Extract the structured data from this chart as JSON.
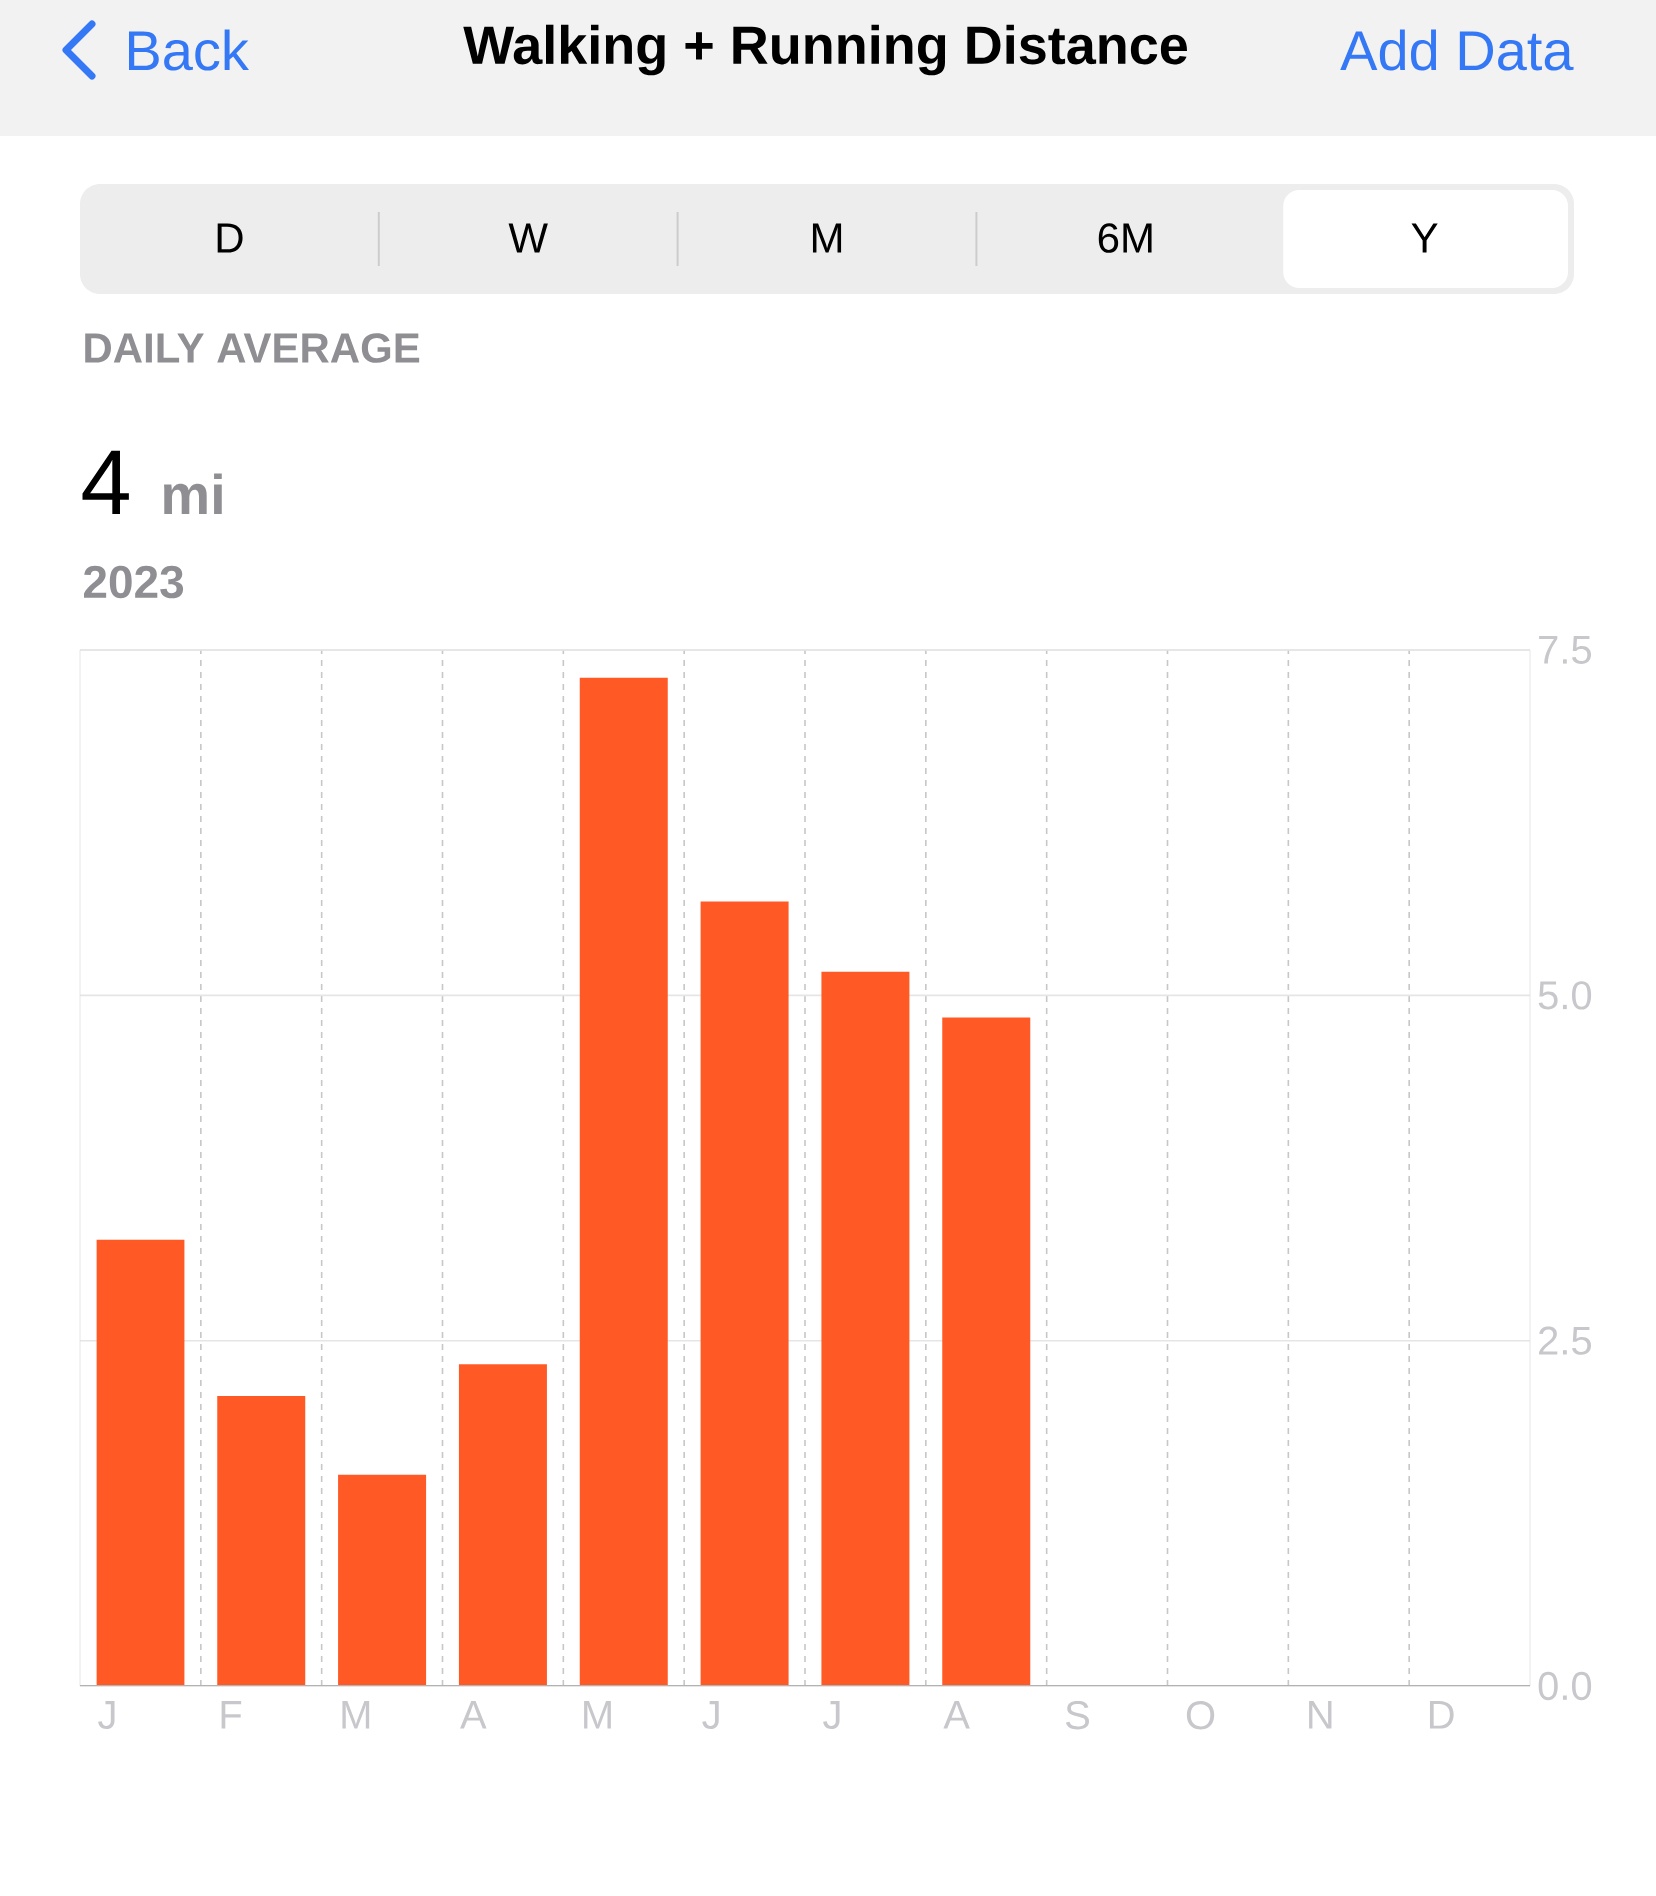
{
  "chart_data": {
    "type": "bar",
    "title": "Walking + Running Distance",
    "annotations": [
      "Back",
      "Add Data",
      "D",
      "W",
      "M",
      "6M",
      "Y",
      "DAILY AVERAGE",
      "4",
      "mi",
      "2023"
    ],
    "categories": [
      "J",
      "F",
      "M",
      "A",
      "M",
      "J",
      "J",
      "A",
      "S",
      "O",
      "N",
      "D"
    ],
    "values": [
      3.23,
      2.1,
      1.53,
      2.33,
      7.3,
      5.68,
      5.17,
      4.84,
      null,
      null,
      null,
      null
    ],
    "color": "#ff5a26",
    "ylim": [
      0,
      7.5
    ],
    "yticks": [
      {
        "value": 0,
        "label": "0.0"
      },
      {
        "value": 2.5,
        "label": "2.5"
      },
      {
        "value": 5,
        "label": "5.0"
      },
      {
        "value": 7.5,
        "label": "7.5"
      }
    ],
    "grid": true
  }
}
